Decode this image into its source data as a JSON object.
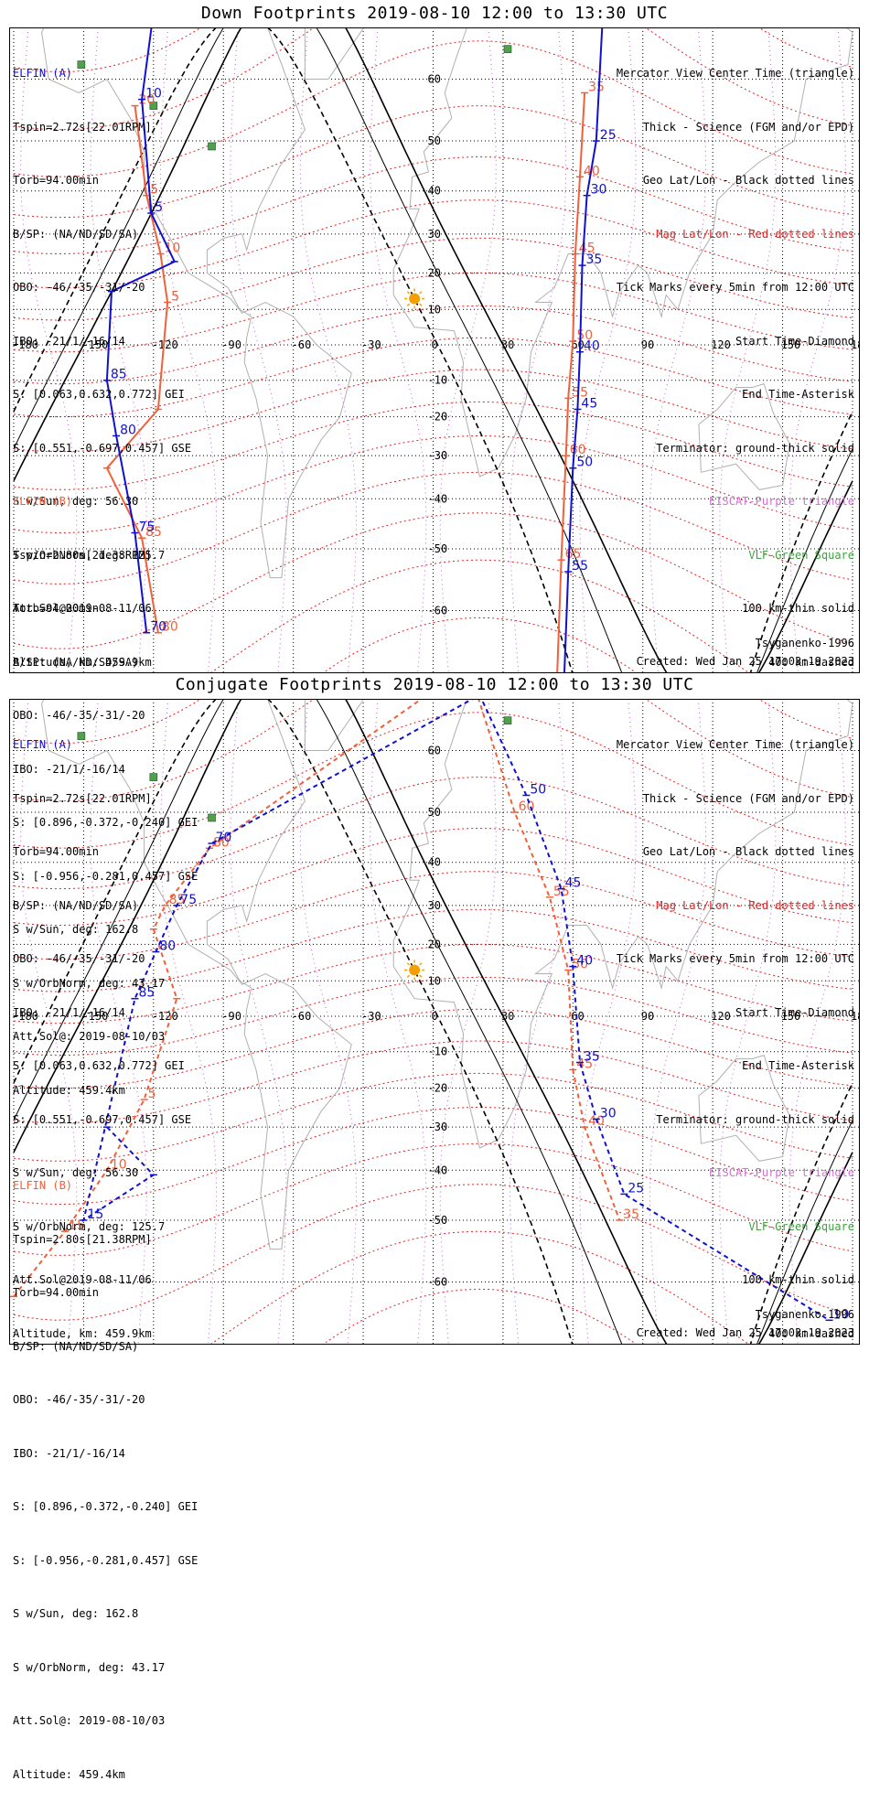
{
  "panels": [
    {
      "title": "Down Footprints 2019-08-10 12:00 to 13:30 UTC",
      "elfin_a": {
        "name": "ELFIN (A)",
        "lines": [
          "Tspin=2.72s[22.01RPM]",
          "Torb=94.00min",
          "B/SP: (NA/ND/SD/SA)",
          "OBO: -46/-35/-31/-20",
          "IBO: -21/1/-16/14",
          "S: [0.063,0.632,0.772] GEI",
          "S: [0.551,-0.697,0.457] GSE",
          "S w/Sun, deg: 56.30",
          "S w/OrbNorm, deg: 125.7",
          "Att.Sol@2019-08-11/06",
          "Altitude, km: 459.9km"
        ]
      },
      "elfin_b": {
        "name": "ELFIN (B)",
        "lines": [
          "Tspin=2.80s[21.38RPM]",
          "Torb=94.00min",
          "B/SP: (NA/ND/SD/SA)",
          "OBO: -46/-35/-31/-20",
          "IBO: -21/1/-16/14",
          "S: [0.896,-0.372,-0.240] GEI",
          "S: [-0.956,-0.281,0.457] GSE",
          "S w/Sun, deg: 162.8",
          "S w/OrbNorm, deg: 43.17",
          "Att.Sol@: 2019-08-10/03",
          "Altitude: 459.4km"
        ]
      },
      "legend": [
        "Mercator View Center Time (triangle)",
        "Thick - Science (FGM and/or EPD)",
        "Geo Lat/Lon - Black dotted lines",
        "Mag Lat/Lon - Red dotted lines",
        "Tick Marks every 5min from 12:00 UTC",
        "Start Time-Diamond",
        "End Time-Asterisk",
        "Terminator: ground-thick solid",
        "EISCAT-Purple triangle",
        "VLF-Green Square",
        "100 km-thin solid",
        "400 km-dashed"
      ],
      "model": "Tsyganenko-1996",
      "created": "Created: Wed Jan 25 17:03:19 2023"
    },
    {
      "title": "Conjugate Footprints 2019-08-10 12:00 to 13:30 UTC",
      "elfin_a": {
        "name": "ELFIN (A)",
        "lines": [
          "Tspin=2.72s[22.01RPM]",
          "Torb=94.00min",
          "B/SP: (NA/ND/SD/SA)",
          "OBO: -46/-35/-31/-20",
          "IBO: -21/1/-16/14",
          "S: [0.063,0.632,0.772] GEI",
          "S: [0.551,-0.697,0.457] GSE",
          "S w/Sun, deg: 56.30",
          "S w/OrbNorm, deg: 125.7",
          "Att.Sol@2019-08-11/06",
          "Altitude, km: 459.9km"
        ]
      },
      "elfin_b": {
        "name": "ELFIN (B)",
        "lines": [
          "Tspin=2.80s[21.38RPM]",
          "Torb=94.00min",
          "B/SP: (NA/ND/SD/SA)",
          "OBO: -46/-35/-31/-20",
          "IBO: -21/1/-16/14",
          "S: [0.896,-0.372,-0.240] GEI",
          "S: [-0.956,-0.281,0.457] GSE",
          "S w/Sun, deg: 162.8",
          "S w/OrbNorm, deg: 43.17",
          "Att.Sol@: 2019-08-10/03",
          "Altitude: 459.4km"
        ]
      },
      "legend": [
        "Mercator View Center Time (triangle)",
        "Thick - Science (FGM and/or EPD)",
        "Geo Lat/Lon - Black dotted lines",
        "Mag Lat/Lon - Red dotted lines",
        "Tick Marks every 5min from 12:00 UTC",
        "Start Time-Diamond",
        "End Time-Asterisk",
        "Terminator: ground-thick solid",
        "EISCAT-Purple triangle",
        "VLF-Green Square",
        "100 km-thin solid",
        "400 km-dashed"
      ],
      "model": "Tsyganenko-1996",
      "created": "Created: Wed Jan 25 17:03:19 2023"
    }
  ],
  "axes": {
    "lon_ticks": [
      "-180",
      "-150",
      "-120",
      "-90",
      "-60",
      "-30",
      "0",
      "30",
      "60",
      "90",
      "120",
      "150",
      "180"
    ],
    "lat_ticks": [
      "70",
      "60",
      "50",
      "40",
      "30",
      "20",
      "10",
      "-10",
      "-20",
      "-30",
      "-40",
      "-50",
      "-60",
      "-70"
    ]
  },
  "colors": {
    "elfin_a": "#1010d0",
    "elfin_b": "#f0603a",
    "mag_grid": "#e82020",
    "eiscat": "#d070d0",
    "vlf": "#40a040",
    "sun": "#f5a000"
  },
  "chart_data": [
    {
      "type": "map",
      "panel": "Down Footprints",
      "elfin_a_track": [
        {
          "lon": -112,
          "lat": 79,
          "label": "+20"
        },
        {
          "lon": -125,
          "lat": 57,
          "label": "10"
        },
        {
          "lon": -121,
          "lat": 35,
          "label": "5"
        },
        {
          "lon": -111,
          "lat": 23
        },
        {
          "lon": -138,
          "lat": 15
        },
        {
          "lon": -140,
          "lat": -10,
          "label": "85"
        },
        {
          "lon": -136,
          "lat": -25,
          "label": "80"
        },
        {
          "lon": -128,
          "lat": -47,
          "label": "75"
        },
        {
          "lon": -123,
          "lat": -63,
          "label": "70"
        },
        {
          "lon": 55,
          "lat": -75,
          "label": "60"
        },
        {
          "lon": 58,
          "lat": -54,
          "label": "55"
        },
        {
          "lon": 60,
          "lat": -33,
          "label": "50"
        },
        {
          "lon": 62,
          "lat": -18,
          "label": "45"
        },
        {
          "lon": 63,
          "lat": -2,
          "label": "40"
        },
        {
          "lon": 64,
          "lat": 22,
          "label": "35"
        },
        {
          "lon": 66,
          "lat": 39,
          "label": "30"
        },
        {
          "lon": 70,
          "lat": 50,
          "label": "25"
        },
        {
          "lon": 76,
          "lat": 79,
          "label": "20"
        }
      ],
      "elfin_b_track": [
        {
          "lon": -128,
          "lat": 56,
          "label": "20"
        },
        {
          "lon": -123,
          "lat": 39,
          "label": "5"
        },
        {
          "lon": -117,
          "lat": 25,
          "label": "10"
        },
        {
          "lon": -114,
          "lat": 12,
          "label": "5"
        },
        {
          "lon": -118,
          "lat": -18
        },
        {
          "lon": -140,
          "lat": -33
        },
        {
          "lon": -125,
          "lat": -48,
          "label": "85"
        },
        {
          "lon": -118,
          "lat": -63,
          "label": "80"
        },
        {
          "lon": 52,
          "lat": -75,
          "label": "70"
        },
        {
          "lon": 55,
          "lat": -52,
          "label": "65"
        },
        {
          "lon": 57,
          "lat": -30,
          "label": "60"
        },
        {
          "lon": 58,
          "lat": -15,
          "label": "55"
        },
        {
          "lon": 60,
          "lat": 1,
          "label": "50"
        },
        {
          "lon": 61,
          "lat": 25,
          "label": "45"
        },
        {
          "lon": 63,
          "lat": 43,
          "label": "40"
        },
        {
          "lon": 65,
          "lat": 58,
          "label": "35"
        }
      ]
    },
    {
      "type": "map",
      "panel": "Conjugate Footprints",
      "elfin_a_track": [
        {
          "lon": -140,
          "lat": -30
        },
        {
          "lon": -120,
          "lat": -41
        },
        {
          "lon": -150,
          "lat": -50,
          "label": "15"
        },
        {
          "lon": -128,
          "lat": 5,
          "label": "85"
        },
        {
          "lon": -119,
          "lat": 18,
          "label": "80"
        },
        {
          "lon": -110,
          "lat": 30,
          "label": "75"
        },
        {
          "lon": -95,
          "lat": 44,
          "label": "70"
        },
        {
          "lon": 20,
          "lat": 67,
          "label": "55"
        },
        {
          "lon": 40,
          "lat": 53,
          "label": "50"
        },
        {
          "lon": 55,
          "lat": 34,
          "label": "45"
        },
        {
          "lon": 60,
          "lat": 14,
          "label": "40"
        },
        {
          "lon": 63,
          "lat": -13,
          "label": "35"
        },
        {
          "lon": 70,
          "lat": -28,
          "label": "30"
        },
        {
          "lon": 82,
          "lat": -45,
          "label": "25"
        },
        {
          "lon": 170,
          "lat": -65,
          "label": "10"
        }
      ],
      "elfin_b_track": [
        {
          "lon": -180,
          "lat": -62
        },
        {
          "lon": -158,
          "lat": -52,
          "label": "15"
        },
        {
          "lon": -140,
          "lat": -40,
          "label": "10"
        },
        {
          "lon": -124,
          "lat": -23,
          "label": "5"
        },
        {
          "lon": -110,
          "lat": 5
        },
        {
          "lon": -120,
          "lat": 24
        },
        {
          "lon": -115,
          "lat": 30,
          "label": "85"
        },
        {
          "lon": -96,
          "lat": 43,
          "label": "80"
        },
        {
          "lon": 15,
          "lat": 70,
          "label": "65"
        },
        {
          "lon": 35,
          "lat": 50,
          "label": "60"
        },
        {
          "lon": 50,
          "lat": 32,
          "label": "55"
        },
        {
          "lon": 58,
          "lat": 13,
          "label": "50"
        },
        {
          "lon": 60,
          "lat": -15,
          "label": "45"
        },
        {
          "lon": 65,
          "lat": -30,
          "label": "40"
        },
        {
          "lon": 80,
          "lat": -50,
          "label": "35"
        }
      ]
    }
  ]
}
